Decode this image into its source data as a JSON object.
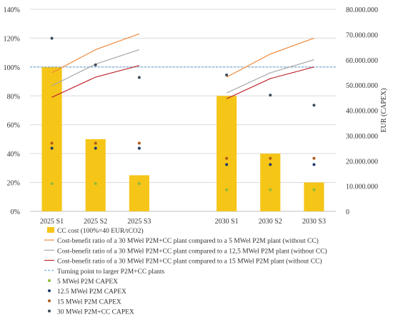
{
  "chart_data": {
    "type": "bar",
    "categories": [
      "2025 S1",
      "2025 S2",
      "2025 S3",
      "",
      "2030 S1",
      "2030 S2",
      "2030 S3"
    ],
    "y_left": {
      "min": 0,
      "max": 140,
      "step": 20,
      "tick_labels": [
        "0%",
        "20%",
        "40%",
        "60%",
        "80%",
        "100%",
        "120%",
        "140%"
      ]
    },
    "y_right": {
      "min": 0,
      "max": 80000000,
      "step": 10000000,
      "label": "EUR (CAPEX)",
      "tick_labels": [
        "0",
        "10.000.000",
        "20.000.000",
        "30.000.000",
        "40.000.000",
        "50.000.000",
        "60.000.000",
        "70.000.000",
        "80.000.000"
      ]
    },
    "grid": "horizontal",
    "legend_position": "bottom",
    "series": [
      {
        "name": "CC cost (100%=40 EUR/tCO2)",
        "kind": "bar",
        "axis": "left",
        "color": "#f5c518",
        "values": [
          100,
          50,
          25,
          null,
          80,
          40,
          20
        ]
      },
      {
        "name": "Cost-benefit ratio of a 30 MWel P2M+CC plant compared to a 5 MWel P2M plant (without CC)",
        "kind": "line",
        "axis": "left",
        "color": "#f08a3c",
        "groups": [
          {
            "categories": [
              "2025 S1",
              "2025 S2",
              "2025 S3"
            ],
            "values": [
              96,
              112,
              123
            ]
          },
          {
            "categories": [
              "2030 S1",
              "2030 S2",
              "2030 S3"
            ],
            "values": [
              93,
              109,
              120
            ]
          }
        ]
      },
      {
        "name": "Cost-benefit ratio of a 30 MWel P2M+CC plant compared to a 12,5 MWel P2M plant (without CC)",
        "kind": "line",
        "axis": "left",
        "color": "#a8a8a8",
        "groups": [
          {
            "categories": [
              "2025 S1",
              "2025 S2",
              "2025 S3"
            ],
            "values": [
              87,
              102,
              112
            ]
          },
          {
            "categories": [
              "2030 S1",
              "2030 S2",
              "2030 S3"
            ],
            "values": [
              82,
              96,
              105
            ]
          }
        ]
      },
      {
        "name": "Cost-benefit ratio of a 30 MWel P2M+CC plant compared to a 15 MWel P2M plant (without CC)",
        "kind": "line",
        "axis": "left",
        "color": "#c0272d",
        "groups": [
          {
            "categories": [
              "2025 S1",
              "2025 S2",
              "2025 S3"
            ],
            "values": [
              79,
              93,
              101
            ]
          },
          {
            "categories": [
              "2030 S1",
              "2030 S2",
              "2030 S3"
            ],
            "values": [
              78,
              92,
              100
            ]
          }
        ]
      },
      {
        "name": "Turning point to larger P2M+CC plants",
        "kind": "hline",
        "axis": "left",
        "color": "#5b9bd5",
        "value": 100
      },
      {
        "name": "5 MWel P2M CAPEX",
        "kind": "point",
        "axis": "right",
        "color": "#8fbc3a",
        "values": [
          11000000,
          11000000,
          11000000,
          null,
          8500000,
          8500000,
          8500000
        ]
      },
      {
        "name": "12.5 MWel P2M CAPEX",
        "kind": "point",
        "axis": "right",
        "color": "#1f3a68",
        "values": [
          25000000,
          25000000,
          25000000,
          null,
          18500000,
          18500000,
          18500000
        ]
      },
      {
        "name": "15 MWel P2M CAPEX",
        "kind": "point",
        "axis": "right",
        "color": "#b05a1a",
        "values": [
          27000000,
          27000000,
          27000000,
          null,
          21000000,
          21000000,
          21000000
        ]
      },
      {
        "name": "30 MWel P2M+CC CAPEX",
        "kind": "point",
        "axis": "right",
        "color": "#3e4a5a",
        "values": [
          68500000,
          58000000,
          53000000,
          null,
          54000000,
          46000000,
          42000000
        ]
      }
    ]
  }
}
